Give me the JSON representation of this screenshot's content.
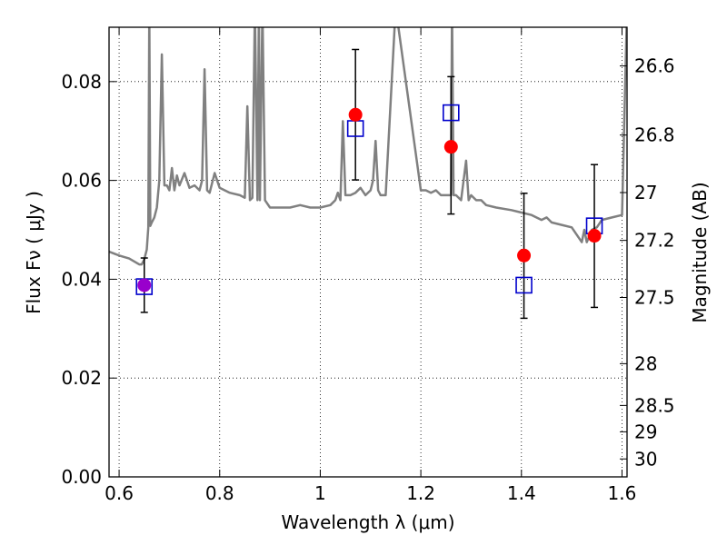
{
  "chart_data": {
    "type": "scatter",
    "xlabel": "Wavelength  λ (μm)",
    "ylabel_left": "Flux  Fν  ( μJy )",
    "ylabel_right": "Magnitude (AB)",
    "xlim": [
      0.58,
      1.61
    ],
    "ylim": [
      0.0,
      0.091
    ],
    "grid": true,
    "x_ticks": [
      0.6,
      0.8,
      1.0,
      1.2,
      1.4,
      1.6
    ],
    "x_tick_labels": [
      "0.6",
      "0.8",
      "1",
      "1.2",
      "1.4",
      "1.6"
    ],
    "y_ticks": [
      0.0,
      0.02,
      0.04,
      0.06,
      0.08
    ],
    "y_tick_labels": [
      "0.00",
      "0.02",
      "0.04",
      "0.06",
      "0.08"
    ],
    "mag_ticks": [
      26.6,
      26.8,
      27.0,
      27.2,
      27.5,
      28.0,
      28.5,
      29.0,
      30.0
    ],
    "mag_tick_labels": [
      "26.6",
      "26.8",
      "27",
      "27.2",
      "27.5",
      "28",
      "28.5",
      "29",
      "30"
    ],
    "colors": {
      "observed": "#ff0000",
      "model": "#0000cc",
      "spectrum": "#808080",
      "overlap": "#9900cc",
      "errorbar": "#000000"
    },
    "series": [
      {
        "marker": "circle",
        "x": [
          0.65,
          1.07,
          1.26,
          1.405,
          1.545
        ],
        "y": [
          0.0388,
          0.0733,
          0.0668,
          0.0448,
          0.0488
        ],
        "yerr_low": [
          0.0333,
          0.0601,
          0.0532,
          0.0321,
          0.0343
        ],
        "yerr_high": [
          0.0443,
          0.0865,
          0.081,
          0.0574,
          0.0632
        ]
      },
      {
        "marker": "square",
        "x": [
          0.65,
          1.07,
          1.26,
          1.405,
          1.545
        ],
        "y": [
          0.0385,
          0.0705,
          0.0737,
          0.0388,
          0.0508
        ]
      },
      {
        "marker": "line",
        "x": [
          0.58,
          0.6,
          0.62,
          0.64,
          0.645,
          0.65,
          0.655,
          0.658,
          0.66,
          0.662,
          0.665,
          0.67,
          0.675,
          0.68,
          0.685,
          0.69,
          0.695,
          0.7,
          0.705,
          0.71,
          0.715,
          0.72,
          0.73,
          0.74,
          0.75,
          0.76,
          0.765,
          0.77,
          0.775,
          0.78,
          0.79,
          0.8,
          0.82,
          0.84,
          0.85,
          0.855,
          0.86,
          0.865,
          0.87,
          0.875,
          0.878,
          0.88,
          0.885,
          0.89,
          0.9,
          0.92,
          0.94,
          0.96,
          0.98,
          1.0,
          1.02,
          1.03,
          1.035,
          1.04,
          1.045,
          1.05,
          1.06,
          1.07,
          1.08,
          1.09,
          1.1,
          1.105,
          1.11,
          1.115,
          1.12,
          1.13,
          1.15,
          1.2,
          1.21,
          1.22,
          1.23,
          1.24,
          1.25,
          1.26,
          1.262,
          1.265,
          1.27,
          1.28,
          1.29,
          1.295,
          1.3,
          1.31,
          1.32,
          1.33,
          1.35,
          1.38,
          1.4,
          1.42,
          1.44,
          1.45,
          1.46,
          1.48,
          1.5,
          1.52,
          1.525,
          1.53,
          1.54,
          1.55,
          1.56,
          1.58,
          1.6,
          1.61
        ],
        "y": [
          0.0456,
          0.0448,
          0.0442,
          0.043,
          0.043,
          0.044,
          0.046,
          0.0505,
          0.095,
          0.0508,
          0.0515,
          0.0525,
          0.0545,
          0.06,
          0.0855,
          0.059,
          0.059,
          0.058,
          0.0625,
          0.058,
          0.061,
          0.059,
          0.0615,
          0.0585,
          0.059,
          0.058,
          0.06,
          0.0825,
          0.058,
          0.0575,
          0.0615,
          0.0585,
          0.0575,
          0.057,
          0.0565,
          0.075,
          0.056,
          0.0565,
          0.095,
          0.056,
          0.095,
          0.056,
          0.095,
          0.056,
          0.0545,
          0.0545,
          0.0545,
          0.055,
          0.0545,
          0.0545,
          0.055,
          0.056,
          0.0575,
          0.056,
          0.072,
          0.057,
          0.057,
          0.0575,
          0.0585,
          0.057,
          0.058,
          0.06,
          0.068,
          0.058,
          0.057,
          0.057,
          0.095,
          0.058,
          0.058,
          0.0575,
          0.058,
          0.057,
          0.057,
          0.057,
          0.095,
          0.057,
          0.057,
          0.056,
          0.064,
          0.056,
          0.057,
          0.056,
          0.056,
          0.055,
          0.0545,
          0.054,
          0.0535,
          0.053,
          0.052,
          0.0525,
          0.0515,
          0.051,
          0.0505,
          0.0475,
          0.05,
          0.0475,
          0.05,
          0.0505,
          0.052,
          0.0525,
          0.053,
          0.095
        ]
      }
    ]
  }
}
